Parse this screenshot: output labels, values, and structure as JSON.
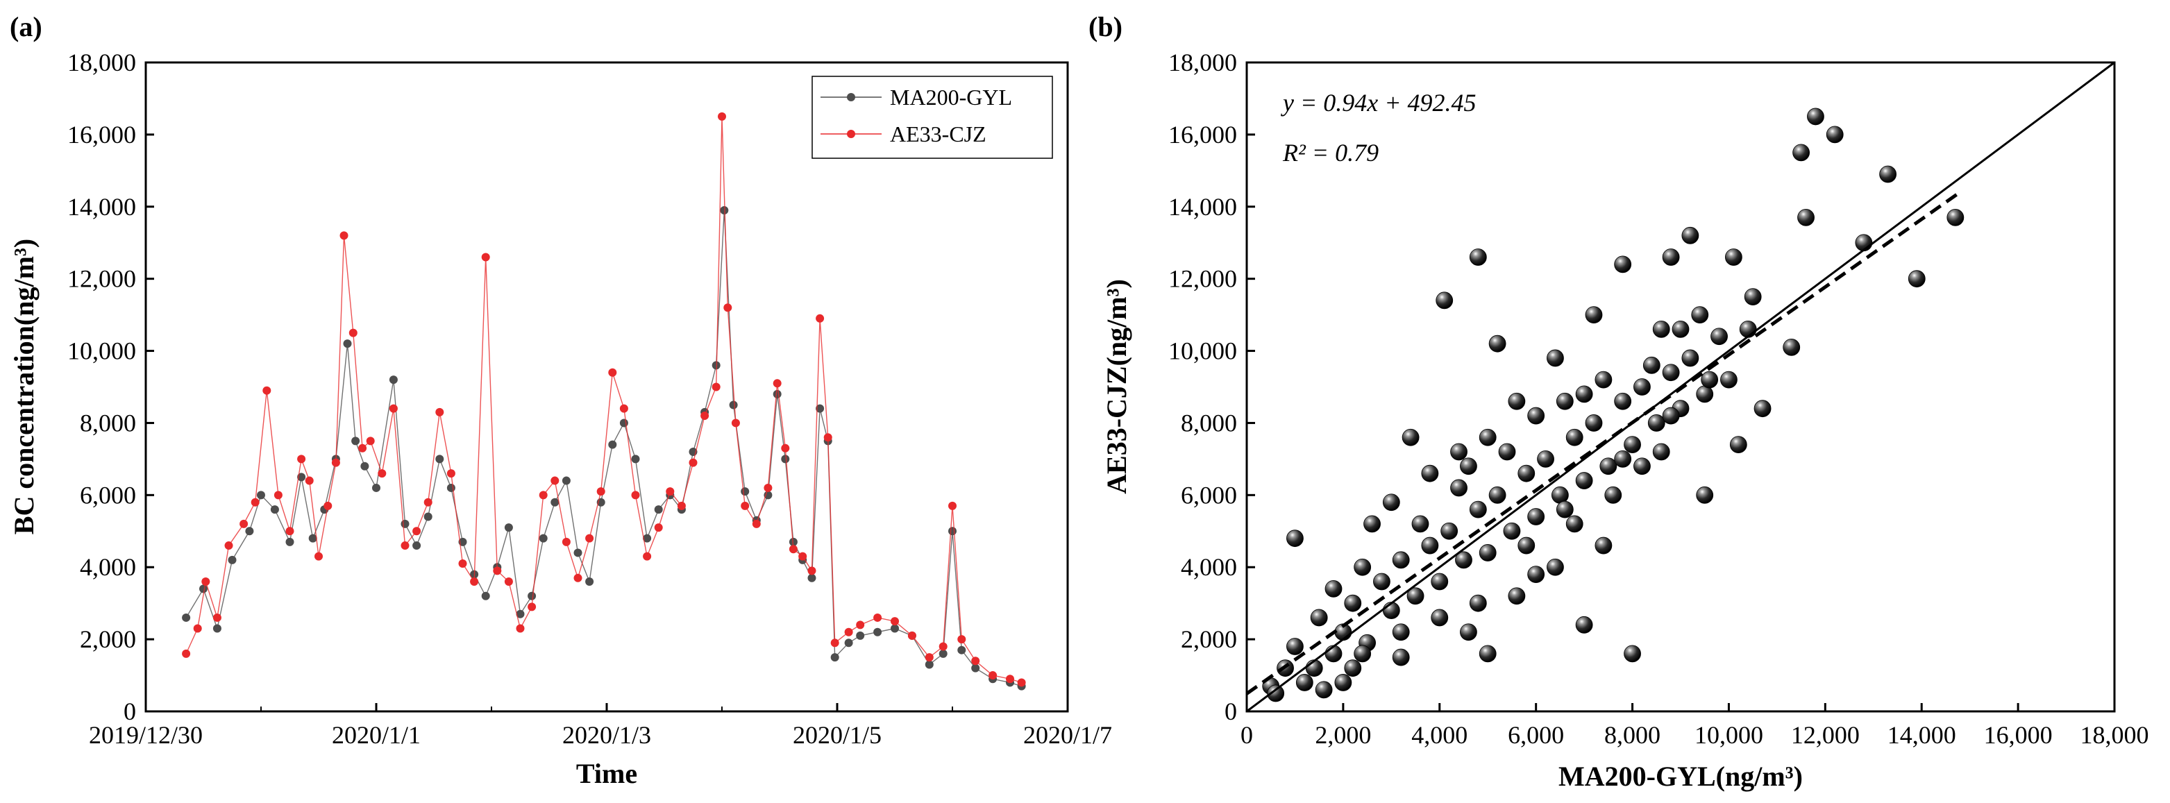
{
  "chart_data": [
    {
      "panel": "(a)",
      "type": "line",
      "xlabel": "Time",
      "ylabel": "BC concentration(ng/m³)",
      "ylim": [
        0,
        18000
      ],
      "yticks": [
        "0",
        "2,000",
        "4,000",
        "6,000",
        "8,000",
        "10,000",
        "12,000",
        "14,000",
        "16,000",
        "18,000"
      ],
      "xlim_days": [
        0,
        8
      ],
      "xticks": [
        "2019/12/30",
        "2020/1/1",
        "2020/1/3",
        "2020/1/5",
        "2020/1/7"
      ],
      "legend": {
        "position": "top-right"
      },
      "series": [
        {
          "name": "MA200-GYL",
          "color": "#4d4d4d",
          "points": [
            [
              0.35,
              2600
            ],
            [
              0.5,
              3400
            ],
            [
              0.62,
              2300
            ],
            [
              0.75,
              4200
            ],
            [
              0.9,
              5000
            ],
            [
              1.0,
              6000
            ],
            [
              1.12,
              5600
            ],
            [
              1.25,
              4700
            ],
            [
              1.35,
              6500
            ],
            [
              1.45,
              4800
            ],
            [
              1.55,
              5600
            ],
            [
              1.65,
              7000
            ],
            [
              1.75,
              10200
            ],
            [
              1.82,
              7500
            ],
            [
              1.9,
              6800
            ],
            [
              2.0,
              6200
            ],
            [
              2.15,
              9200
            ],
            [
              2.25,
              5200
            ],
            [
              2.35,
              4600
            ],
            [
              2.45,
              5400
            ],
            [
              2.55,
              7000
            ],
            [
              2.65,
              6200
            ],
            [
              2.75,
              4700
            ],
            [
              2.85,
              3800
            ],
            [
              2.95,
              3200
            ],
            [
              3.05,
              4000
            ],
            [
              3.15,
              5100
            ],
            [
              3.25,
              2700
            ],
            [
              3.35,
              3200
            ],
            [
              3.45,
              4800
            ],
            [
              3.55,
              5800
            ],
            [
              3.65,
              6400
            ],
            [
              3.75,
              4400
            ],
            [
              3.85,
              3600
            ],
            [
              3.95,
              5800
            ],
            [
              4.05,
              7400
            ],
            [
              4.15,
              8000
            ],
            [
              4.25,
              7000
            ],
            [
              4.35,
              4800
            ],
            [
              4.45,
              5600
            ],
            [
              4.55,
              6000
            ],
            [
              4.65,
              5600
            ],
            [
              4.75,
              7200
            ],
            [
              4.85,
              8300
            ],
            [
              4.95,
              9600
            ],
            [
              5.02,
              13900
            ],
            [
              5.1,
              8500
            ],
            [
              5.2,
              6100
            ],
            [
              5.3,
              5300
            ],
            [
              5.4,
              6000
            ],
            [
              5.48,
              8800
            ],
            [
              5.55,
              7000
            ],
            [
              5.62,
              4700
            ],
            [
              5.7,
              4200
            ],
            [
              5.78,
              3700
            ],
            [
              5.85,
              8400
            ],
            [
              5.92,
              7500
            ],
            [
              5.98,
              1500
            ],
            [
              6.1,
              1900
            ],
            [
              6.2,
              2100
            ],
            [
              6.35,
              2200
            ],
            [
              6.5,
              2300
            ],
            [
              6.65,
              2100
            ],
            [
              6.8,
              1300
            ],
            [
              6.92,
              1600
            ],
            [
              7.0,
              5000
            ],
            [
              7.08,
              1700
            ],
            [
              7.2,
              1200
            ],
            [
              7.35,
              900
            ],
            [
              7.5,
              800
            ],
            [
              7.6,
              700
            ]
          ]
        },
        {
          "name": "AE33-CJZ",
          "color": "#e8292b",
          "points": [
            [
              0.35,
              1600
            ],
            [
              0.45,
              2300
            ],
            [
              0.52,
              3600
            ],
            [
              0.62,
              2600
            ],
            [
              0.72,
              4600
            ],
            [
              0.85,
              5200
            ],
            [
              0.95,
              5800
            ],
            [
              1.05,
              8900
            ],
            [
              1.15,
              6000
            ],
            [
              1.25,
              5000
            ],
            [
              1.35,
              7000
            ],
            [
              1.42,
              6400
            ],
            [
              1.5,
              4300
            ],
            [
              1.58,
              5700
            ],
            [
              1.65,
              6900
            ],
            [
              1.72,
              13200
            ],
            [
              1.8,
              10500
            ],
            [
              1.88,
              7300
            ],
            [
              1.95,
              7500
            ],
            [
              2.05,
              6600
            ],
            [
              2.15,
              8400
            ],
            [
              2.25,
              4600
            ],
            [
              2.35,
              5000
            ],
            [
              2.45,
              5800
            ],
            [
              2.55,
              8300
            ],
            [
              2.65,
              6600
            ],
            [
              2.75,
              4100
            ],
            [
              2.85,
              3600
            ],
            [
              2.95,
              12600
            ],
            [
              3.05,
              3900
            ],
            [
              3.15,
              3600
            ],
            [
              3.25,
              2300
            ],
            [
              3.35,
              2900
            ],
            [
              3.45,
              6000
            ],
            [
              3.55,
              6400
            ],
            [
              3.65,
              4700
            ],
            [
              3.75,
              3700
            ],
            [
              3.85,
              4800
            ],
            [
              3.95,
              6100
            ],
            [
              4.05,
              9400
            ],
            [
              4.15,
              8400
            ],
            [
              4.25,
              6000
            ],
            [
              4.35,
              4300
            ],
            [
              4.45,
              5100
            ],
            [
              4.55,
              6100
            ],
            [
              4.65,
              5700
            ],
            [
              4.75,
              6900
            ],
            [
              4.85,
              8200
            ],
            [
              4.95,
              9000
            ],
            [
              5.0,
              16500
            ],
            [
              5.05,
              11200
            ],
            [
              5.12,
              8000
            ],
            [
              5.2,
              5700
            ],
            [
              5.3,
              5200
            ],
            [
              5.4,
              6200
            ],
            [
              5.48,
              9100
            ],
            [
              5.55,
              7300
            ],
            [
              5.62,
              4500
            ],
            [
              5.7,
              4300
            ],
            [
              5.78,
              3900
            ],
            [
              5.85,
              10900
            ],
            [
              5.92,
              7600
            ],
            [
              5.98,
              1900
            ],
            [
              6.1,
              2200
            ],
            [
              6.2,
              2400
            ],
            [
              6.35,
              2600
            ],
            [
              6.5,
              2500
            ],
            [
              6.65,
              2100
            ],
            [
              6.8,
              1500
            ],
            [
              6.92,
              1800
            ],
            [
              7.0,
              5700
            ],
            [
              7.08,
              2000
            ],
            [
              7.2,
              1400
            ],
            [
              7.35,
              1000
            ],
            [
              7.5,
              900
            ],
            [
              7.6,
              800
            ]
          ]
        }
      ]
    },
    {
      "panel": "(b)",
      "type": "scatter",
      "xlabel": "MA200-GYL(ng/m³)",
      "ylabel": "AE33-CJZ(ng/m³)",
      "xlim": [
        0,
        18000
      ],
      "ylim": [
        0,
        18000
      ],
      "xticks": [
        "0",
        "2,000",
        "4,000",
        "6,000",
        "8,000",
        "10,000",
        "12,000",
        "14,000",
        "16,000",
        "18,000"
      ],
      "yticks": [
        "0",
        "2,000",
        "4,000",
        "6,000",
        "8,000",
        "10,000",
        "12,000",
        "14,000",
        "16,000",
        "18,000"
      ],
      "fit": {
        "slope": 0.94,
        "intercept": 492.45,
        "r2": 0.79,
        "x_range": [
          0,
          14800
        ],
        "style": "dashed"
      },
      "reference": {
        "label": "1:1",
        "style": "solid"
      },
      "equation_text": "y = 0.94x + 492.45",
      "r2_text": "R² = 0.79",
      "point_color": "#111111",
      "points": [
        [
          500,
          700
        ],
        [
          800,
          1200
        ],
        [
          1000,
          1800
        ],
        [
          1200,
          800
        ],
        [
          1500,
          2600
        ],
        [
          1800,
          1600
        ],
        [
          2000,
          2200
        ],
        [
          2200,
          3000
        ],
        [
          2500,
          1900
        ],
        [
          2800,
          3600
        ],
        [
          3000,
          2800
        ],
        [
          3200,
          4200
        ],
        [
          3500,
          3200
        ],
        [
          3800,
          4600
        ],
        [
          4000,
          3600
        ],
        [
          4200,
          5000
        ],
        [
          4500,
          4200
        ],
        [
          4800,
          5600
        ],
        [
          5000,
          4400
        ],
        [
          5200,
          6000
        ],
        [
          5500,
          5000
        ],
        [
          5800,
          6600
        ],
        [
          6000,
          5400
        ],
        [
          6200,
          7000
        ],
        [
          6500,
          6000
        ],
        [
          6800,
          7600
        ],
        [
          7000,
          6400
        ],
        [
          7200,
          8000
        ],
        [
          7500,
          6800
        ],
        [
          7800,
          8600
        ],
        [
          8000,
          7400
        ],
        [
          8200,
          9000
        ],
        [
          8500,
          8000
        ],
        [
          8800,
          9400
        ],
        [
          9000,
          8400
        ],
        [
          9200,
          9800
        ],
        [
          9500,
          8800
        ],
        [
          9800,
          10400
        ],
        [
          10000,
          9200
        ],
        [
          1000,
          4800
        ],
        [
          4100,
          11400
        ],
        [
          4800,
          12600
        ],
        [
          5200,
          10200
        ],
        [
          3400,
          7600
        ],
        [
          2600,
          5200
        ],
        [
          6000,
          3800
        ],
        [
          7000,
          2400
        ],
        [
          8000,
          1600
        ],
        [
          5000,
          1600
        ],
        [
          4600,
          2200
        ],
        [
          3200,
          1500
        ],
        [
          2000,
          800
        ],
        [
          9500,
          6000
        ],
        [
          10200,
          7400
        ],
        [
          10700,
          8400
        ],
        [
          10500,
          11500
        ],
        [
          11300,
          10100
        ],
        [
          11600,
          13700
        ],
        [
          11500,
          15500
        ],
        [
          11800,
          16500
        ],
        [
          12200,
          16000
        ],
        [
          12800,
          13000
        ],
        [
          13300,
          14900
        ],
        [
          13900,
          12000
        ],
        [
          14700,
          13700
        ],
        [
          10100,
          12600
        ],
        [
          9200,
          13200
        ],
        [
          8800,
          12600
        ],
        [
          7800,
          12400
        ],
        [
          7200,
          11000
        ],
        [
          8600,
          10600
        ],
        [
          9400,
          11000
        ],
        [
          6400,
          9800
        ],
        [
          5600,
          8600
        ],
        [
          4400,
          7200
        ],
        [
          3000,
          5800
        ],
        [
          1800,
          3400
        ],
        [
          2400,
          4000
        ],
        [
          3600,
          5200
        ],
        [
          4400,
          6200
        ],
        [
          5400,
          7200
        ],
        [
          6600,
          8600
        ],
        [
          7400,
          9200
        ],
        [
          8400,
          9600
        ],
        [
          9000,
          10600
        ],
        [
          6800,
          5200
        ],
        [
          7600,
          6000
        ],
        [
          8200,
          6800
        ],
        [
          8600,
          7200
        ],
        [
          7400,
          4600
        ],
        [
          6400,
          4000
        ],
        [
          5600,
          3200
        ],
        [
          4800,
          3000
        ],
        [
          4000,
          2600
        ],
        [
          3200,
          2200
        ],
        [
          2400,
          1600
        ],
        [
          1400,
          1200
        ],
        [
          600,
          500
        ],
        [
          1600,
          600
        ],
        [
          2200,
          1200
        ],
        [
          5000,
          7600
        ],
        [
          6000,
          8200
        ],
        [
          7000,
          8800
        ],
        [
          3800,
          6600
        ],
        [
          4600,
          6800
        ],
        [
          5800,
          4600
        ],
        [
          6600,
          5600
        ],
        [
          7800,
          7000
        ],
        [
          8800,
          8200
        ],
        [
          9600,
          9200
        ],
        [
          10400,
          10600
        ]
      ]
    }
  ],
  "labels": {
    "panel_a": "(a)",
    "panel_b": "(b)"
  }
}
